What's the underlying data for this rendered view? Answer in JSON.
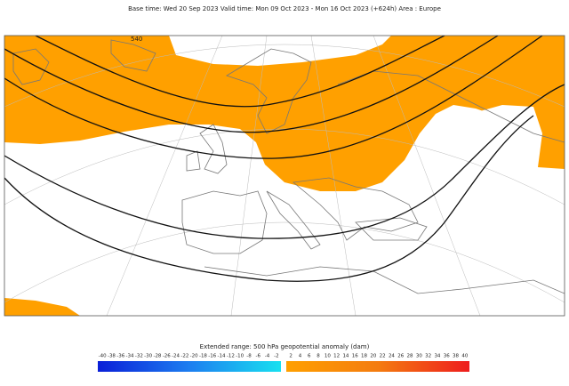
{
  "header": {
    "title": "Base time: Wed 20 Sep 2023 Valid time: Mon 09 Oct 2023 - Mon 16 Oct 2023 (+624h) Area : Europe"
  },
  "map": {
    "contour_labels": [
      "540"
    ]
  },
  "legend": {
    "title": "Extended range: 500 hPa geopotential anomaly (dam)",
    "negative_ticks": [
      -40,
      -38,
      -36,
      -34,
      -32,
      -30,
      -28,
      -26,
      -24,
      -22,
      -20,
      -18,
      -16,
      -14,
      -12,
      -10,
      -8,
      -6,
      -4,
      -2
    ],
    "positive_ticks": [
      2,
      4,
      6,
      8,
      10,
      12,
      14,
      16,
      18,
      20,
      22,
      24,
      26,
      28,
      30,
      32,
      34,
      36,
      38,
      40
    ]
  }
}
